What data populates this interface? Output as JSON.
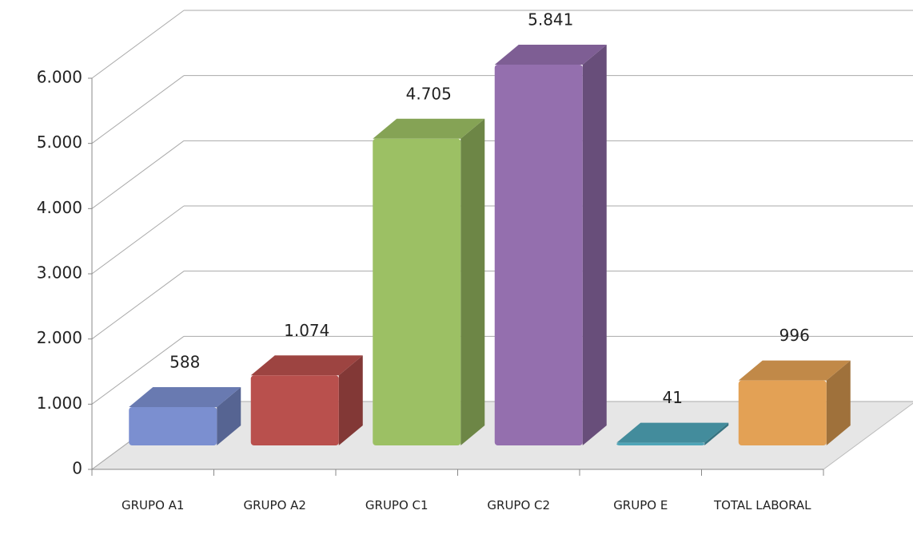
{
  "chart_data": {
    "type": "bar3d",
    "categories": [
      "GRUPO A1",
      "GRUPO A2",
      "GRUPO C1",
      "GRUPO C2",
      "GRUPO E",
      "TOTAL LABORAL"
    ],
    "values": [
      588,
      1074,
      4705,
      5841,
      41,
      996
    ],
    "value_labels": [
      "588",
      "1.074",
      "4.705",
      "5.841",
      "41",
      "996"
    ],
    "colors": [
      "#7b8fd0",
      "#b9504d",
      "#9cc064",
      "#946fae",
      "#4fa5b8",
      "#e3a155"
    ],
    "ylim": [
      0,
      6000
    ],
    "yticks": [
      0,
      {
        "value": 1000,
        "label": "1.000"
      },
      {
        "value": 2000,
        "label": "2.000"
      },
      {
        "value": 3000,
        "label": "3.000"
      },
      {
        "value": 4000,
        "label": "4.000"
      },
      {
        "value": 5000,
        "label": "5.000"
      },
      {
        "value": 6000,
        "label": "6.000"
      }
    ],
    "grid": true
  }
}
